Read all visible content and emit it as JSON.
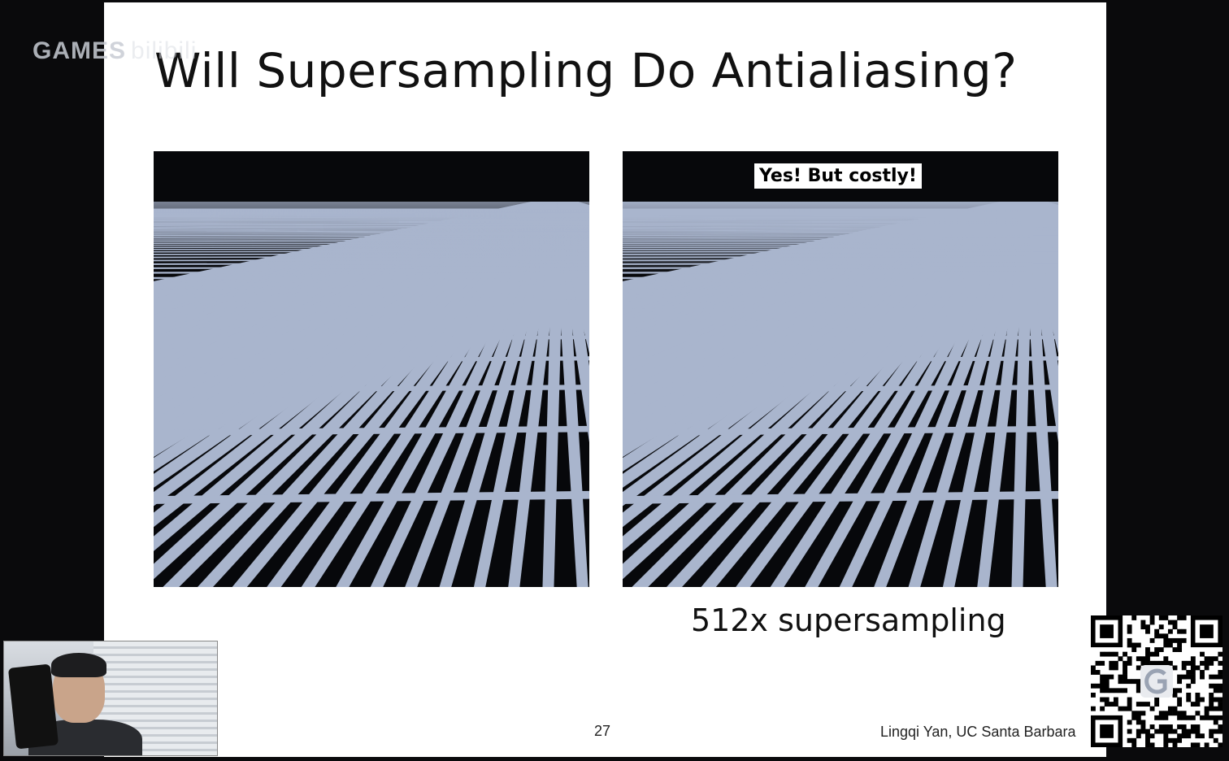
{
  "slide": {
    "title": "Will Supersampling Do Antialiasing?",
    "right_badge": "Yes! But costly!",
    "caption": "512x supersampling",
    "page_number": "27",
    "credit": "Lingqi Yan, UC Santa Barbara"
  },
  "overlay": {
    "watermark": "GAMES",
    "watermark_extra": "bilibili"
  },
  "colors": {
    "grid_line": "#a9b5cd",
    "floor": "#07080b",
    "slide_bg": "#ffffff"
  }
}
